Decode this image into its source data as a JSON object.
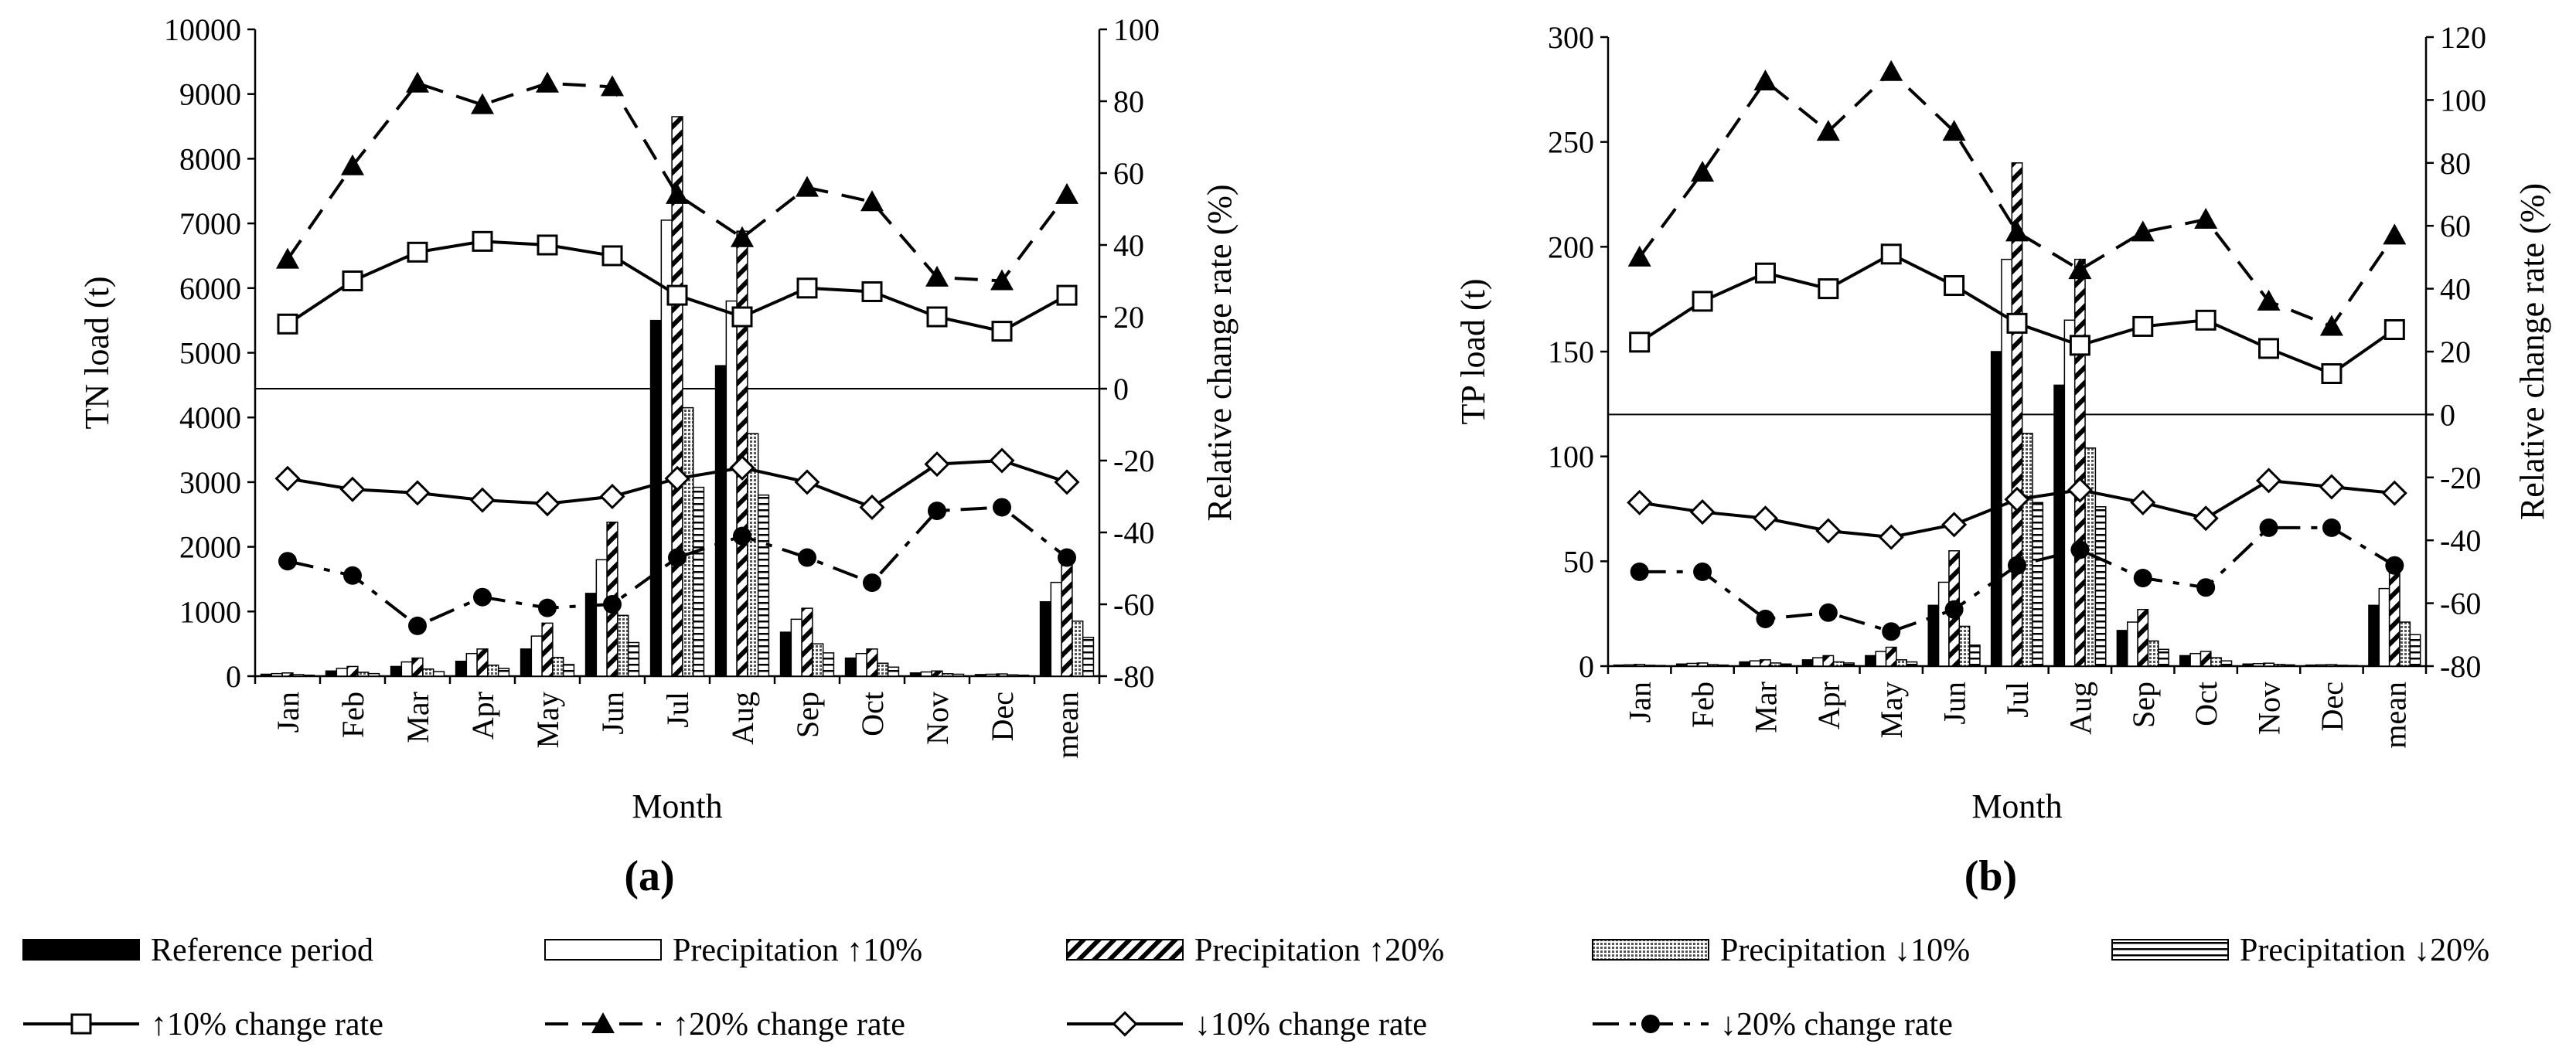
{
  "figure": {
    "panel_labels": [
      "(a)",
      "(b)"
    ]
  },
  "legend": {
    "bars": [
      {
        "key": "ref",
        "label": "Reference period"
      },
      {
        "key": "p10",
        "label": "Precipitation ↑10%"
      },
      {
        "key": "p20",
        "label": "Precipitation ↑20%"
      },
      {
        "key": "m10",
        "label": "Precipitation ↓10%"
      },
      {
        "key": "m20",
        "label": "Precipitation ↓20%"
      }
    ],
    "lines": [
      {
        "key": "p10",
        "label": "↑10% change rate"
      },
      {
        "key": "p20",
        "label": "↑20% change rate"
      },
      {
        "key": "m10",
        "label": "↓10% change rate"
      },
      {
        "key": "m20",
        "label": "↓20% change rate"
      }
    ]
  },
  "chart_data": [
    {
      "type": "bar",
      "panel": "(a)",
      "categories": [
        "Jan",
        "Feb",
        "Mar",
        "Apr",
        "May",
        "Jun",
        "Jul",
        "Aug",
        "Sep",
        "Oct",
        "Nov",
        "Dec",
        "mean"
      ],
      "xlabel": "Month",
      "ylabel": "TN load (t)",
      "y2label": "Relative change rate (%)",
      "ylim": [
        0,
        10000
      ],
      "yticks": [
        0,
        1000,
        2000,
        3000,
        4000,
        5000,
        6000,
        7000,
        8000,
        9000,
        10000
      ],
      "y2lim": [
        -80,
        100
      ],
      "y2ticks": [
        -80,
        -60,
        -40,
        -20,
        0,
        20,
        40,
        60,
        80,
        100
      ],
      "bar_series": [
        {
          "name": "Reference period",
          "values": [
            30,
            80,
            150,
            230,
            420,
            1280,
            5500,
            4800,
            680,
            280,
            50,
            25,
            1150
          ]
        },
        {
          "name": "Precipitation ↑10%",
          "values": [
            40,
            120,
            220,
            350,
            620,
            1800,
            7050,
            5800,
            880,
            350,
            65,
            30,
            1450
          ]
        },
        {
          "name": "Precipitation ↑20%",
          "values": [
            50,
            150,
            280,
            420,
            820,
            2380,
            8650,
            6880,
            1050,
            420,
            80,
            35,
            1800
          ]
        },
        {
          "name": "Precipitation ↓10%",
          "values": [
            25,
            60,
            110,
            170,
            290,
            940,
            4150,
            3750,
            500,
            200,
            38,
            20,
            850
          ]
        },
        {
          "name": "Precipitation ↓20%",
          "values": [
            15,
            40,
            70,
            120,
            180,
            520,
            2920,
            2800,
            360,
            140,
            30,
            15,
            600
          ]
        }
      ],
      "line_series": [
        {
          "name": "↑10% change rate",
          "values": [
            18,
            30,
            38,
            41,
            40,
            37,
            26,
            20,
            28,
            27,
            20,
            16,
            26
          ]
        },
        {
          "name": "↑20% change rate",
          "values": [
            36,
            62,
            85,
            79,
            85,
            84,
            54,
            42,
            56,
            52,
            31,
            30,
            54
          ]
        },
        {
          "name": "↓10% change rate",
          "values": [
            -25,
            -28,
            -29,
            -31,
            -32,
            -30,
            -25,
            -22,
            -26,
            -33,
            -21,
            -20,
            -26
          ]
        },
        {
          "name": "↓20% change rate",
          "values": [
            -48,
            -52,
            -66,
            -58,
            -61,
            -60,
            -47,
            -41,
            -47,
            -54,
            -34,
            -33,
            -47
          ]
        }
      ]
    },
    {
      "type": "bar",
      "panel": "(b)",
      "categories": [
        "Jan",
        "Feb",
        "Mar",
        "Apr",
        "May",
        "Jun",
        "Jul",
        "Aug",
        "Sep",
        "Oct",
        "Nov",
        "Dec",
        "mean"
      ],
      "xlabel": "Month",
      "ylabel": "TP load (t)",
      "y2label": "Relative change rate (%)",
      "ylim": [
        0,
        300
      ],
      "yticks": [
        0,
        50,
        100,
        150,
        200,
        250,
        300
      ],
      "y2lim": [
        -80,
        120
      ],
      "y2ticks": [
        -80,
        -60,
        -40,
        -20,
        0,
        20,
        40,
        60,
        80,
        100,
        120
      ],
      "bar_series": [
        {
          "name": "Reference period",
          "values": [
            0.5,
            1,
            2,
            3,
            5,
            29,
            150,
            134,
            17,
            5,
            1,
            0.5,
            29
          ]
        },
        {
          "name": "Precipitation ↑10%",
          "values": [
            0.6,
            1.3,
            2.5,
            4,
            7,
            40,
            194,
            165,
            21,
            6,
            1.2,
            0.6,
            37
          ]
        },
        {
          "name": "Precipitation ↑20%",
          "values": [
            0.8,
            1.5,
            3,
            5,
            9,
            55,
            240,
            194,
            27,
            7,
            1.4,
            0.7,
            46
          ]
        },
        {
          "name": "Precipitation ↓10%",
          "values": [
            0.4,
            0.7,
            1.5,
            2,
            3,
            19,
            111,
            104,
            12,
            4,
            0.8,
            0.4,
            21
          ]
        },
        {
          "name": "Precipitation ↓20%",
          "values": [
            0.3,
            0.5,
            1,
            1.5,
            2,
            10,
            78,
            76,
            8,
            2.5,
            0.6,
            0.3,
            15
          ]
        }
      ],
      "line_series": [
        {
          "name": "↑10% change rate",
          "values": [
            23,
            36,
            45,
            40,
            51,
            41,
            29,
            22,
            28,
            30,
            21,
            13,
            27
          ]
        },
        {
          "name": "↑20% change rate",
          "values": [
            50,
            77,
            106,
            90,
            109,
            90,
            58,
            46,
            58,
            62,
            36,
            28,
            57
          ]
        },
        {
          "name": "↓10% change rate",
          "values": [
            -28,
            -31,
            -33,
            -37,
            -39,
            -35,
            -27,
            -24,
            -28,
            -33,
            -21,
            -23,
            -25
          ]
        },
        {
          "name": "↓20% change rate",
          "values": [
            -50,
            -50,
            -65,
            -63,
            -69,
            -62,
            -48,
            -43,
            -52,
            -55,
            -36,
            -36,
            -48
          ]
        }
      ]
    }
  ]
}
